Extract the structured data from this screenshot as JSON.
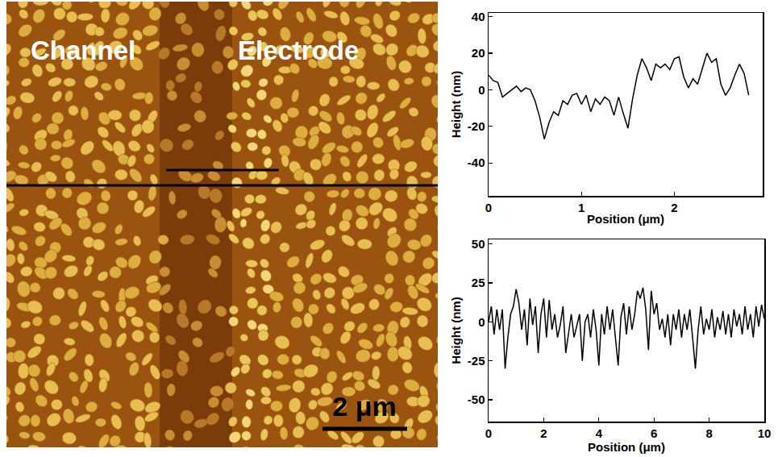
{
  "image": {
    "labels": [
      "Channel",
      "Electrode"
    ],
    "scale_bar": "2 μm"
  },
  "chart_data": [
    {
      "type": "line",
      "x_label": "Position (μm)",
      "y_label": "Height (nm)",
      "color": "#000000",
      "grid": false,
      "x": [
        0,
        0.05,
        0.1,
        0.15,
        0.2,
        0.25,
        0.3,
        0.35,
        0.4,
        0.45,
        0.5,
        0.55,
        0.6,
        0.65,
        0.7,
        0.75,
        0.8,
        0.85,
        0.9,
        0.95,
        1.0,
        1.05,
        1.1,
        1.15,
        1.2,
        1.25,
        1.3,
        1.35,
        1.4,
        1.45,
        1.5,
        1.55,
        1.6,
        1.65,
        1.7,
        1.75,
        1.8,
        1.85,
        1.9,
        1.95,
        2.0,
        2.05,
        2.1,
        2.15,
        2.2,
        2.25,
        2.3,
        2.35,
        2.4,
        2.45,
        2.5,
        2.55,
        2.6,
        2.65,
        2.7,
        2.75,
        2.8
      ],
      "values": [
        8,
        5,
        4,
        -4,
        -2,
        0,
        2,
        -1,
        1,
        0,
        -6,
        -15,
        -27,
        -18,
        -12,
        -14,
        -6,
        -8,
        -3,
        -2,
        -8,
        -3,
        -12,
        -5,
        -8,
        -4,
        -6,
        -14,
        -4,
        -13,
        -21,
        -5,
        8,
        17,
        12,
        5,
        14,
        12,
        14,
        11,
        17,
        18,
        7,
        1,
        6,
        3,
        12,
        20,
        15,
        17,
        3,
        -3,
        1,
        8,
        14,
        9,
        -3
      ],
      "xlim": [
        0,
        2.95
      ],
      "xticks": [
        0,
        1,
        2
      ],
      "ylim": [
        -58,
        42
      ],
      "yticks": [
        -40,
        -20,
        0,
        20,
        40
      ]
    },
    {
      "type": "line",
      "x_label": "Position (μm)",
      "y_label": "Height (nm)",
      "color": "#000000",
      "grid": false,
      "x": [
        0,
        0.1,
        0.2,
        0.3,
        0.4,
        0.5,
        0.6,
        0.7,
        0.8,
        0.9,
        1.0,
        1.1,
        1.2,
        1.3,
        1.4,
        1.5,
        1.6,
        1.7,
        1.8,
        1.9,
        2.0,
        2.1,
        2.2,
        2.3,
        2.4,
        2.5,
        2.6,
        2.7,
        2.8,
        2.9,
        3.0,
        3.1,
        3.2,
        3.3,
        3.4,
        3.5,
        3.6,
        3.7,
        3.8,
        3.9,
        4.0,
        4.1,
        4.2,
        4.3,
        4.4,
        4.5,
        4.6,
        4.7,
        4.8,
        4.9,
        5.0,
        5.1,
        5.2,
        5.3,
        5.4,
        5.5,
        5.6,
        5.7,
        5.8,
        5.9,
        6.0,
        6.1,
        6.2,
        6.3,
        6.4,
        6.5,
        6.6,
        6.7,
        6.8,
        6.9,
        7.0,
        7.1,
        7.2,
        7.3,
        7.4,
        7.5,
        7.6,
        7.7,
        7.8,
        7.9,
        8.0,
        8.1,
        8.2,
        8.3,
        8.4,
        8.5,
        8.6,
        8.7,
        8.8,
        8.9,
        9.0,
        9.1,
        9.2,
        9.3,
        9.4,
        9.5,
        9.6,
        9.7,
        9.8,
        9.9,
        10.0
      ],
      "values": [
        0,
        10,
        -8,
        8,
        -5,
        8,
        -30,
        -10,
        5,
        10,
        21,
        12,
        -5,
        8,
        -15,
        15,
        -2,
        10,
        -20,
        5,
        15,
        -10,
        14,
        -5,
        5,
        -10,
        -2,
        10,
        -20,
        -8,
        5,
        -10,
        -2,
        5,
        -25,
        0,
        5,
        -10,
        8,
        -5,
        -28,
        5,
        -8,
        10,
        -5,
        8,
        -10,
        -28,
        3,
        12,
        -8,
        10,
        -5,
        5,
        20,
        15,
        22,
        8,
        -18,
        20,
        5,
        12,
        -5,
        2,
        -10,
        5,
        -15,
        5,
        -5,
        8,
        -10,
        5,
        -5,
        8,
        -10,
        -30,
        -5,
        10,
        -8,
        2,
        -5,
        8,
        -10,
        3,
        -5,
        7,
        -8,
        5,
        -10,
        8,
        -3,
        5,
        -8,
        10,
        -5,
        5,
        -10,
        10,
        -3,
        11,
        2
      ],
      "xlim": [
        0,
        10
      ],
      "xticks": [
        0,
        2,
        4,
        6,
        8,
        10
      ],
      "ylim": [
        -64,
        53
      ],
      "yticks": [
        -50,
        -25,
        0,
        25,
        50
      ]
    }
  ]
}
